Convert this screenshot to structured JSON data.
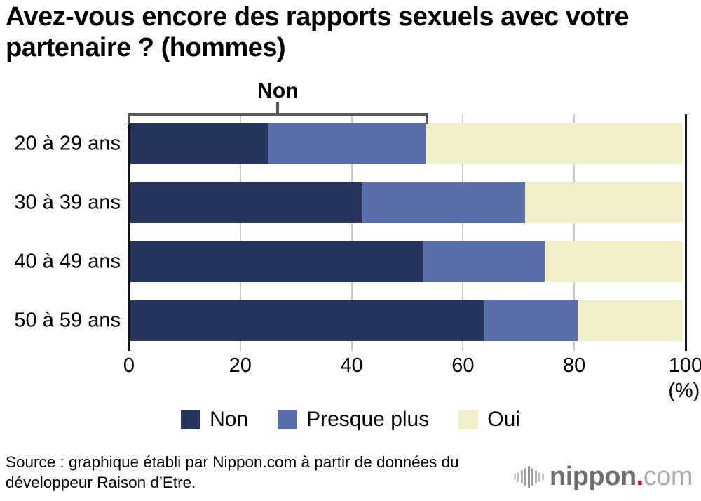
{
  "title": {
    "line1": "Avez-vous encore des rapports sexuels avec votre",
    "line2": "partenaire ? (hommes)"
  },
  "bracket": {
    "label": "Non",
    "start_pct": 0,
    "end_pct": 53.5
  },
  "chart_data": {
    "type": "bar",
    "orientation": "horizontal",
    "stacked": true,
    "title": "Avez-vous encore des rapports sexuels avec votre partenaire ? (hommes)",
    "categories": [
      "20 à 29 ans",
      "30 à 39 ans",
      "40 à 49 ans",
      "50 à 59 ans"
    ],
    "series": [
      {
        "name": "Non",
        "color": "#28345e",
        "values": [
          25,
          42,
          53,
          64
        ]
      },
      {
        "name": "Presque plus",
        "color": "#5a70ab",
        "values": [
          28.5,
          29.5,
          22,
          17
        ]
      },
      {
        "name": "Oui",
        "color": "#f0eec7",
        "values": [
          46.5,
          28.5,
          25,
          19
        ]
      }
    ],
    "x_ticks": [
      0,
      20,
      40,
      60,
      80,
      100
    ],
    "xlim": [
      0,
      100
    ],
    "xlabel": "(%)",
    "grid": true,
    "legend_position": "bottom",
    "annotation": {
      "label": "Non",
      "span_pct": [
        0,
        53.5
      ]
    }
  },
  "source": {
    "line1": "Source : graphique établi par Nippon.com à partir de données du",
    "line2": "développeur Raison d’Etre."
  },
  "logo": {
    "name": "nippon.com",
    "bold": "nippon",
    "dot": ".",
    "light": "com",
    "dot_color": "#e60012"
  },
  "colors": {
    "axis": "#111111",
    "grid": "#cccccc",
    "bracket": "#58585a"
  }
}
